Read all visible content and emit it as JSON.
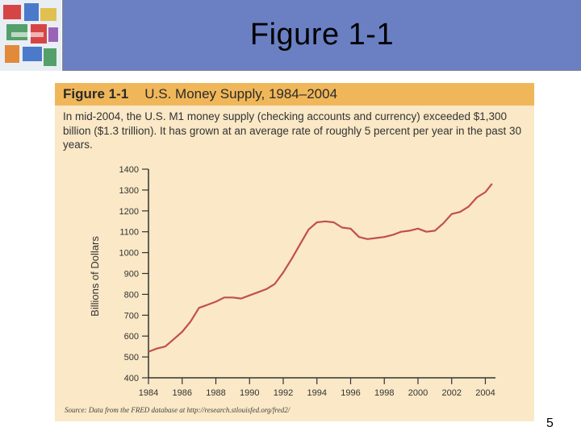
{
  "slide": {
    "title": "Figure 1-1",
    "page_number": "5"
  },
  "figure": {
    "label": "Figure 1-1",
    "heading": "U.S. Money Supply, 1984–2004",
    "caption": "In mid-2004, the U.S. M1 money supply (checking accounts and currency) exceeded $1,300 billion ($1.3 trillion). It has grown at an average rate of roughly 5 percent per year in the past 30 years.",
    "source": "Source: Data from the FRED database at http://research.stlouisfed.org/fred2/"
  },
  "colors": {
    "line": "#c0504d",
    "figure_bg": "#fae8c6",
    "header_band": "#f0b75a",
    "slide_bar": "#6b7fc3"
  },
  "chart_data": {
    "type": "line",
    "title": "U.S. Money Supply, 1984–2004",
    "xlabel": "",
    "ylabel": "Billions of Dollars",
    "xlim": [
      1984,
      2004.6
    ],
    "ylim": [
      400,
      1400
    ],
    "x_ticks": [
      1984,
      1986,
      1988,
      1990,
      1992,
      1994,
      1996,
      1998,
      2000,
      2002,
      2004
    ],
    "y_ticks": [
      400,
      500,
      600,
      700,
      800,
      900,
      1000,
      1100,
      1200,
      1300,
      1400
    ],
    "grid": false,
    "series": [
      {
        "x": [
          1984,
          1984.5,
          1985,
          1985.5,
          1986,
          1986.5,
          1987,
          1987.5,
          1988,
          1988.5,
          1989,
          1989.5,
          1990,
          1990.5,
          1991,
          1991.5,
          1992,
          1992.5,
          1993,
          1993.5,
          1994,
          1994.5,
          1995,
          1995.5,
          1996,
          1996.5,
          1997,
          1997.5,
          1998,
          1998.5,
          1999,
          1999.5,
          2000,
          2000.5,
          2001,
          2001.5,
          2002,
          2002.5,
          2003,
          2003.5,
          2004,
          2004.4
        ],
        "values": [
          525,
          540,
          550,
          585,
          620,
          670,
          735,
          750,
          765,
          785,
          785,
          780,
          795,
          810,
          825,
          850,
          905,
          970,
          1040,
          1110,
          1145,
          1150,
          1145,
          1120,
          1115,
          1075,
          1065,
          1070,
          1075,
          1085,
          1100,
          1105,
          1115,
          1100,
          1105,
          1140,
          1185,
          1195,
          1220,
          1265,
          1290,
          1330
        ]
      }
    ]
  }
}
